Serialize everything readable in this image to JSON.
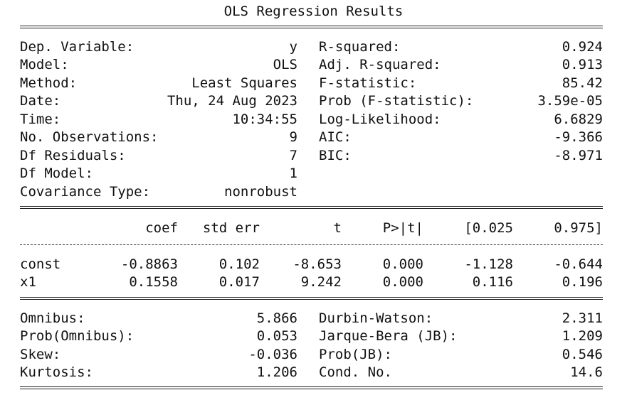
{
  "title": "OLS Regression Results",
  "top": {
    "left": [
      {
        "label": "Dep. Variable:",
        "value": "y"
      },
      {
        "label": "Model:",
        "value": "OLS"
      },
      {
        "label": "Method:",
        "value": "Least Squares"
      },
      {
        "label": "Date:",
        "value": "Thu, 24 Aug 2023"
      },
      {
        "label": "Time:",
        "value": "10:34:55"
      },
      {
        "label": "No. Observations:",
        "value": "9"
      },
      {
        "label": "Df Residuals:",
        "value": "7"
      },
      {
        "label": "Df Model:",
        "value": "1"
      },
      {
        "label": "Covariance Type:",
        "value": "nonrobust"
      }
    ],
    "right": [
      {
        "label": "R-squared:",
        "value": "0.924"
      },
      {
        "label": "Adj. R-squared:",
        "value": "0.913"
      },
      {
        "label": "F-statistic:",
        "value": "85.42"
      },
      {
        "label": "Prob (F-statistic):",
        "value": "3.59e-05"
      },
      {
        "label": "Log-Likelihood:",
        "value": "6.6829"
      },
      {
        "label": "AIC:",
        "value": "-9.366"
      },
      {
        "label": "BIC:",
        "value": "-8.971"
      }
    ]
  },
  "coef_table": {
    "headers": [
      "coef",
      "std err",
      "t",
      "P>|t|",
      "[0.025",
      "0.975]"
    ],
    "rows": [
      {
        "name": "const",
        "values": [
          "-0.8863",
          "0.102",
          "-8.653",
          "0.000",
          "-1.128",
          "-0.644"
        ]
      },
      {
        "name": "x1",
        "values": [
          "0.1558",
          "0.017",
          "9.242",
          "0.000",
          "0.116",
          "0.196"
        ]
      }
    ]
  },
  "bottom": {
    "left": [
      {
        "label": "Omnibus:",
        "value": "5.866"
      },
      {
        "label": "Prob(Omnibus):",
        "value": "0.053"
      },
      {
        "label": "Skew:",
        "value": "-0.036"
      },
      {
        "label": "Kurtosis:",
        "value": "1.206"
      }
    ],
    "right": [
      {
        "label": "Durbin-Watson:",
        "value": "2.311"
      },
      {
        "label": "Jarque-Bera (JB):",
        "value": "1.209"
      },
      {
        "label": "Prob(JB):",
        "value": "0.546"
      },
      {
        "label": "Cond. No.",
        "value": "14.6"
      }
    ]
  }
}
